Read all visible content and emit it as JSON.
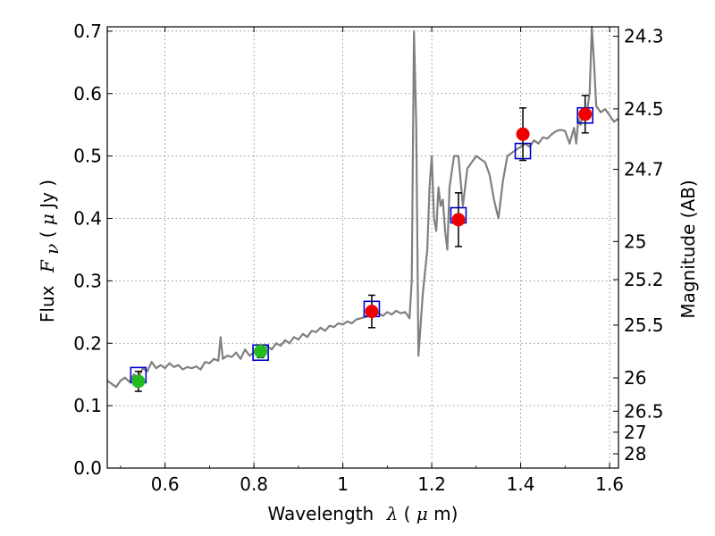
{
  "chart_data": {
    "type": "line",
    "xlabel": {
      "prefix": "Wavelength",
      "symbol": "λ",
      "unit_open": " (",
      "unit_mu": "μ",
      "unit_rest": "m)"
    },
    "ylabel": {
      "prefix": "Flux",
      "symbol": "F",
      "subscript": "ν",
      "unit_open": " ( ",
      "unit_mu": "μ",
      "unit_rest": "Jy )"
    },
    "y2label": "Magnitude (AB)",
    "xlim": [
      0.47,
      1.62
    ],
    "ylim": [
      0.0,
      0.707
    ],
    "x_ticks": [
      {
        "value": 0.6,
        "label": "0.6"
      },
      {
        "value": 0.8,
        "label": "0.8"
      },
      {
        "value": 1.0,
        "label": "1"
      },
      {
        "value": 1.2,
        "label": "1.2"
      },
      {
        "value": 1.4,
        "label": "1.4"
      },
      {
        "value": 1.6,
        "label": "1.6"
      }
    ],
    "y_ticks": [
      {
        "value": 0.0,
        "label": "0.0"
      },
      {
        "value": 0.1,
        "label": "0.1"
      },
      {
        "value": 0.2,
        "label": "0.2"
      },
      {
        "value": 0.3,
        "label": "0.3"
      },
      {
        "value": 0.4,
        "label": "0.4"
      },
      {
        "value": 0.5,
        "label": "0.5"
      },
      {
        "value": 0.6,
        "label": "0.6"
      },
      {
        "value": 0.7,
        "label": "0.7"
      }
    ],
    "magnitude_ticks": [
      {
        "mag": 24.3,
        "label": "24.3"
      },
      {
        "mag": 24.5,
        "label": "24.5"
      },
      {
        "mag": 24.7,
        "label": "24.7"
      },
      {
        "mag": 25.0,
        "label": "25"
      },
      {
        "mag": 25.2,
        "label": "25.2"
      },
      {
        "mag": 25.5,
        "label": "25.5"
      },
      {
        "mag": 26.0,
        "label": "26"
      },
      {
        "mag": 26.5,
        "label": "26.5"
      },
      {
        "mag": 27.0,
        "label": "27"
      },
      {
        "mag": 28.0,
        "label": "28"
      }
    ],
    "grid": true,
    "colors": {
      "spectrum": "#808080",
      "model": "#0000cc",
      "optical": "#22bb22",
      "infrared": "#ee0000",
      "errorbar": "#000000",
      "grid": "#777777"
    },
    "series": [
      {
        "name": "spectrum",
        "x": [
          0.47,
          0.48,
          0.49,
          0.5,
          0.51,
          0.52,
          0.53,
          0.54,
          0.55,
          0.56,
          0.57,
          0.58,
          0.59,
          0.6,
          0.61,
          0.62,
          0.63,
          0.64,
          0.65,
          0.66,
          0.67,
          0.68,
          0.69,
          0.7,
          0.71,
          0.72,
          0.725,
          0.73,
          0.74,
          0.75,
          0.76,
          0.77,
          0.78,
          0.79,
          0.8,
          0.81,
          0.82,
          0.83,
          0.84,
          0.85,
          0.86,
          0.87,
          0.88,
          0.89,
          0.9,
          0.91,
          0.92,
          0.93,
          0.94,
          0.95,
          0.96,
          0.97,
          0.98,
          0.99,
          1.0,
          1.01,
          1.02,
          1.03,
          1.04,
          1.05,
          1.06,
          1.07,
          1.08,
          1.09,
          1.1,
          1.11,
          1.12,
          1.13,
          1.14,
          1.15,
          1.155,
          1.16,
          1.165,
          1.17,
          1.18,
          1.19,
          1.195,
          1.2,
          1.205,
          1.21,
          1.215,
          1.22,
          1.225,
          1.23,
          1.235,
          1.24,
          1.25,
          1.26,
          1.27,
          1.28,
          1.29,
          1.3,
          1.31,
          1.32,
          1.33,
          1.34,
          1.35,
          1.36,
          1.37,
          1.38,
          1.39,
          1.4,
          1.41,
          1.42,
          1.43,
          1.44,
          1.45,
          1.46,
          1.47,
          1.48,
          1.49,
          1.5,
          1.51,
          1.52,
          1.525,
          1.53,
          1.535,
          1.54,
          1.545,
          1.55,
          1.555,
          1.56,
          1.565,
          1.57,
          1.58,
          1.59,
          1.6,
          1.61,
          1.62
        ],
        "y": [
          0.14,
          0.135,
          0.13,
          0.14,
          0.145,
          0.138,
          0.15,
          0.145,
          0.16,
          0.155,
          0.17,
          0.16,
          0.165,
          0.16,
          0.168,
          0.162,
          0.165,
          0.158,
          0.162,
          0.16,
          0.163,
          0.158,
          0.17,
          0.168,
          0.175,
          0.172,
          0.21,
          0.175,
          0.18,
          0.178,
          0.185,
          0.175,
          0.19,
          0.18,
          0.185,
          0.19,
          0.188,
          0.195,
          0.19,
          0.2,
          0.196,
          0.205,
          0.2,
          0.21,
          0.206,
          0.215,
          0.21,
          0.22,
          0.218,
          0.225,
          0.22,
          0.228,
          0.226,
          0.232,
          0.23,
          0.235,
          0.232,
          0.238,
          0.24,
          0.242,
          0.245,
          0.243,
          0.248,
          0.244,
          0.25,
          0.246,
          0.252,
          0.248,
          0.25,
          0.24,
          0.3,
          0.7,
          0.55,
          0.18,
          0.28,
          0.35,
          0.45,
          0.5,
          0.4,
          0.38,
          0.45,
          0.42,
          0.43,
          0.38,
          0.35,
          0.45,
          0.5,
          0.5,
          0.42,
          0.48,
          0.49,
          0.5,
          0.495,
          0.49,
          0.47,
          0.43,
          0.4,
          0.46,
          0.5,
          0.505,
          0.51,
          0.515,
          0.52,
          0.515,
          0.525,
          0.52,
          0.53,
          0.528,
          0.535,
          0.54,
          0.542,
          0.54,
          0.52,
          0.545,
          0.52,
          0.56,
          0.55,
          0.57,
          0.56,
          0.575,
          0.6,
          0.73,
          0.65,
          0.58,
          0.57,
          0.575,
          0.565,
          0.555,
          0.56
        ]
      }
    ],
    "model_points": [
      {
        "x": 0.54,
        "y": 0.149
      },
      {
        "x": 0.815,
        "y": 0.185
      },
      {
        "x": 1.065,
        "y": 0.255
      },
      {
        "x": 1.26,
        "y": 0.405
      },
      {
        "x": 1.405,
        "y": 0.508
      },
      {
        "x": 1.545,
        "y": 0.565
      }
    ],
    "observed_points": [
      {
        "x": 0.54,
        "y": 0.139,
        "err": 0.016,
        "band": "optical"
      },
      {
        "x": 0.815,
        "y": 0.187,
        "err": 0.01,
        "band": "optical"
      },
      {
        "x": 1.065,
        "y": 0.251,
        "err": 0.026,
        "band": "infrared"
      },
      {
        "x": 1.26,
        "y": 0.398,
        "err": 0.043,
        "band": "infrared"
      },
      {
        "x": 1.405,
        "y": 0.535,
        "err": 0.042,
        "band": "infrared"
      },
      {
        "x": 1.545,
        "y": 0.567,
        "err": 0.03,
        "band": "infrared"
      }
    ]
  }
}
